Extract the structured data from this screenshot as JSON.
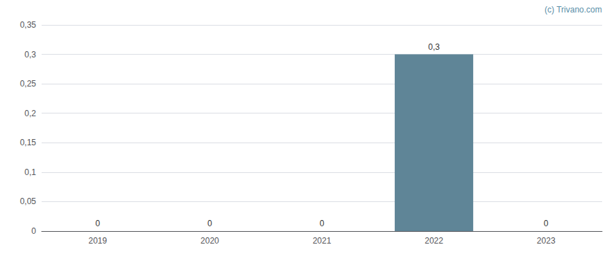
{
  "chart_data": {
    "type": "bar",
    "categories": [
      "2019",
      "2020",
      "2021",
      "2022",
      "2023"
    ],
    "values": [
      0,
      0,
      0,
      0.3,
      0
    ],
    "value_labels": [
      "0",
      "0",
      "0",
      "0,3",
      "0"
    ],
    "data_labels": true,
    "color": "#5f8597",
    "ylim": [
      0,
      0.35
    ],
    "yticks": [
      0,
      {
        "value": 0.05,
        "label": "0,05"
      },
      {
        "value": 0.1,
        "label": "0,1"
      },
      {
        "value": 0.15,
        "label": "0,15"
      },
      {
        "value": 0.2,
        "label": "0,2"
      },
      {
        "value": 0.25,
        "label": "0,25"
      },
      {
        "value": 0.3,
        "label": "0,3"
      },
      {
        "value": 0.35,
        "label": "0,35"
      }
    ],
    "grid": true,
    "annotations": [
      "(c) Trivano.com"
    ]
  }
}
